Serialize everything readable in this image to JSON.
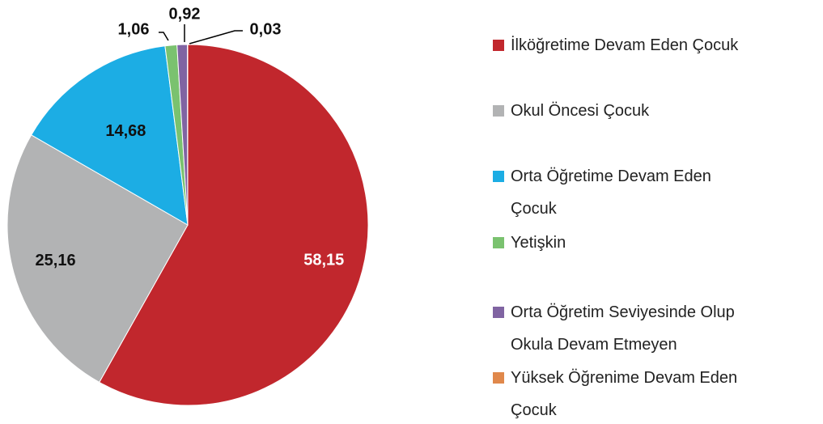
{
  "chart_data": {
    "type": "pie",
    "categories": [
      "İlköğretime Devam Eden Çocuk",
      "Okul Öncesi Çocuk",
      "Orta Öğretime Devam Eden Çocuk",
      "Yetişkin",
      "Orta Öğretim Seviyesinde Olup Okula Devam Etmeyen",
      "Yüksek Öğrenime Devam Eden Çocuk"
    ],
    "values": [
      58.15,
      25.16,
      14.68,
      1.06,
      0.92,
      0.03
    ],
    "value_labels": [
      "58,15",
      "25,16",
      "14,68",
      "1,06",
      "0,92",
      "0,03"
    ],
    "colors": [
      "#c1272d",
      "#b2b3b4",
      "#1cade4",
      "#7ac26f",
      "#8064a2",
      "#e0884b"
    ],
    "legend": "right"
  }
}
